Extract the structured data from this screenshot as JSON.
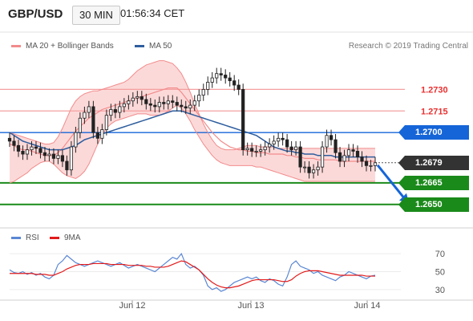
{
  "header": {
    "symbol": "GBP/USD",
    "timeframe": "30 MIN",
    "time": "01:56:34 CET"
  },
  "legend": {
    "bollinger_label": "MA 20 + Bollinger Bands",
    "ma50_label": "MA 50",
    "research": "Research © 2019 Trading Central",
    "rsi_label": "RSI",
    "ma9_label": "9MA"
  },
  "colors": {
    "bollinger": "#f28b8b",
    "band_fill": "#fcd9d9",
    "ma50": "#2f5e9e",
    "pivot_blue": "#1565d8",
    "support_green": "#1a8a1a",
    "resistance": "#f5a0a0",
    "candle_up": "#f5f5f5",
    "candle_down": "#222222",
    "rsi": "#5b87d4",
    "ma9": "#e21b1b",
    "current_tag": "#333333"
  },
  "levels": [
    {
      "value": 1.273,
      "label": "1.2730",
      "kind": "resistance"
    },
    {
      "value": 1.2715,
      "label": "1.2715",
      "kind": "resistance"
    },
    {
      "value": 1.27,
      "label": "1.2700",
      "kind": "pivot"
    },
    {
      "value": 1.2679,
      "label": "1.2679",
      "kind": "current"
    },
    {
      "value": 1.2665,
      "label": "1.2665",
      "kind": "support"
    },
    {
      "value": 1.265,
      "label": "1.2650",
      "kind": "support"
    }
  ],
  "chart_data": [
    {
      "type": "candlestick",
      "x_labels": [
        "Jun 12",
        "Jun 13",
        "Jun 14"
      ],
      "ylim": [
        1.2637,
        1.2752
      ],
      "series": [
        {
          "name": "Price",
          "values": [
            1.2694,
            1.2691,
            1.2687,
            1.2685,
            1.2688,
            1.269,
            1.2689,
            1.2686,
            1.2684,
            1.2685,
            1.2682,
            1.2684,
            1.268,
            1.2674,
            1.269,
            1.27,
            1.271,
            1.2714,
            1.2718,
            1.27,
            1.2696,
            1.2702,
            1.2712,
            1.2716,
            1.2714,
            1.2718,
            1.272,
            1.2722,
            1.2724,
            1.2725,
            1.2723,
            1.272,
            1.2719,
            1.2718,
            1.2721,
            1.272,
            1.2722,
            1.2721,
            1.2719,
            1.2718,
            1.2717,
            1.2719,
            1.2722,
            1.2726,
            1.273,
            1.2735,
            1.2738,
            1.2741,
            1.274,
            1.2738,
            1.2736,
            1.2733,
            1.273,
            1.2688,
            1.2689,
            1.2687,
            1.2687,
            1.2688,
            1.269,
            1.2692,
            1.2694,
            1.2696,
            1.2695,
            1.269,
            1.2688,
            1.269,
            1.2676,
            1.2676,
            1.2672,
            1.2674,
            1.2676,
            1.269,
            1.2698,
            1.2695,
            1.2686,
            1.268,
            1.2684,
            1.2688,
            1.2687,
            1.2683,
            1.268,
            1.2677,
            1.2677,
            1.2679
          ]
        },
        {
          "name": "MA 20",
          "values": [
            1.2692,
            1.2691,
            1.2689,
            1.2688,
            1.2688,
            1.2687,
            1.2686,
            1.2685,
            1.2684,
            1.2684,
            1.2684,
            1.2686,
            1.2689,
            1.2693,
            1.2697,
            1.2701,
            1.2704,
            1.2707,
            1.271,
            1.2712,
            1.2714,
            1.2716,
            1.2717,
            1.2718,
            1.2719,
            1.272,
            1.2721,
            1.2722,
            1.2723,
            1.2724,
            1.2725,
            1.2726,
            1.2727,
            1.2728,
            1.2729,
            1.273,
            1.2731,
            1.2731,
            1.2731,
            1.2728,
            1.2724,
            1.272,
            1.2716,
            1.2712,
            1.2708,
            1.2704,
            1.27,
            1.2697,
            1.2694,
            1.2692,
            1.269,
            1.2689,
            1.2688,
            1.2688,
            1.2687,
            1.2687,
            1.2686,
            1.2686,
            1.2686,
            1.2685,
            1.2685,
            1.2685,
            1.2685,
            1.2684,
            1.2684,
            1.2683,
            1.2683,
            1.2682,
            1.2682,
            1.2682,
            1.2681,
            1.2681,
            1.2681,
            1.2681,
            1.2681,
            1.268,
            1.268,
            1.268,
            1.268,
            1.268,
            1.268,
            1.268,
            1.268,
            1.268
          ]
        },
        {
          "name": "MA 50",
          "values": [
            1.27,
            1.2698,
            1.2696,
            1.2694,
            1.2693,
            1.2692,
            1.2691,
            1.269,
            1.2689,
            1.2688,
            1.2688,
            1.2688,
            1.2688,
            1.2689,
            1.269,
            1.2691,
            1.2693,
            1.2695,
            1.2696,
            1.2697,
            1.2698,
            1.2699,
            1.27,
            1.2701,
            1.2702,
            1.2703,
            1.2704,
            1.2705,
            1.2706,
            1.2707,
            1.2708,
            1.2709,
            1.271,
            1.2711,
            1.2712,
            1.2713,
            1.2714,
            1.2715,
            1.2715,
            1.2715,
            1.2714,
            1.2713,
            1.2712,
            1.2711,
            1.271,
            1.2709,
            1.2708,
            1.2707,
            1.2706,
            1.2705,
            1.2704,
            1.2703,
            1.2702,
            1.2701,
            1.27,
            1.2699,
            1.2698,
            1.2696,
            1.2694,
            1.2692,
            1.269,
            1.2689,
            1.2688,
            1.2687,
            1.2687,
            1.2686,
            1.2686,
            1.2685,
            1.2685,
            1.2685,
            1.2684,
            1.2684,
            1.2684,
            1.2684,
            1.2683,
            1.2683,
            1.2683,
            1.2683,
            1.2683,
            1.2683,
            1.2683,
            1.2683,
            1.2683,
            1.2683
          ]
        },
        {
          "name": "Bollinger Upper",
          "values": [
            1.27,
            1.2699,
            1.2698,
            1.2697,
            1.2696,
            1.2695,
            1.2694,
            1.2693,
            1.2692,
            1.2692,
            1.2693,
            1.2697,
            1.2703,
            1.271,
            1.2717,
            1.2722,
            1.2725,
            1.2727,
            1.2728,
            1.2729,
            1.2729,
            1.273,
            1.2731,
            1.2732,
            1.2733,
            1.2734,
            1.2735,
            1.2737,
            1.274,
            1.2743,
            1.2745,
            1.2747,
            1.2748,
            1.2749,
            1.275,
            1.275,
            1.2749,
            1.2748,
            1.2745,
            1.2741,
            1.2735,
            1.2728,
            1.272,
            1.2713,
            1.2706,
            1.27,
            1.2695,
            1.2691,
            1.2689,
            1.2688,
            1.2688,
            1.2688,
            1.2689,
            1.269,
            1.2691,
            1.2691,
            1.2691,
            1.269,
            1.269,
            1.269,
            1.269,
            1.2689,
            1.2689,
            1.2689,
            1.2689,
            1.2689,
            1.2689,
            1.2689,
            1.2689,
            1.2689,
            1.2689,
            1.2689,
            1.2689,
            1.2689,
            1.2689,
            1.2689,
            1.2689,
            1.2689,
            1.2689,
            1.2689,
            1.2689,
            1.2689,
            1.2689,
            1.2689
          ]
        },
        {
          "name": "Bollinger Lower",
          "values": [
            1.2665,
            1.2666,
            1.2668,
            1.267,
            1.2672,
            1.2675,
            1.2677,
            1.2679,
            1.268,
            1.268,
            1.2678,
            1.2675,
            1.2672,
            1.267,
            1.2669,
            1.2668,
            1.267,
            1.2673,
            1.2678,
            1.2685,
            1.2692,
            1.2698,
            1.2703,
            1.2706,
            1.2708,
            1.2709,
            1.271,
            1.2711,
            1.2712,
            1.2713,
            1.2713,
            1.2713,
            1.2712,
            1.2712,
            1.2712,
            1.2713,
            1.2715,
            1.2717,
            1.2719,
            1.2717,
            1.2713,
            1.2708,
            1.2702,
            1.2697,
            1.2692,
            1.2688,
            1.2684,
            1.2681,
            1.2679,
            1.2678,
            1.2677,
            1.2677,
            1.2677,
            1.2677,
            1.2677,
            1.2677,
            1.2676,
            1.2676,
            1.2675,
            1.2674,
            1.2673,
            1.2672,
            1.2671,
            1.267,
            1.2669,
            1.2668,
            1.2667,
            1.2666,
            1.2666,
            1.2666,
            1.2666,
            1.2666,
            1.2666,
            1.2666,
            1.2666,
            1.2666,
            1.2666,
            1.2666,
            1.2666,
            1.2666,
            1.2666,
            1.2666,
            1.2666,
            1.2666
          ]
        }
      ]
    },
    {
      "type": "line",
      "yticks": [
        70,
        50,
        30
      ],
      "ylim": [
        20,
        80
      ],
      "series": [
        {
          "name": "RSI",
          "values": [
            52,
            49,
            48,
            50,
            47,
            49,
            46,
            48,
            44,
            42,
            46,
            58,
            62,
            68,
            64,
            60,
            58,
            56,
            58,
            60,
            62,
            60,
            58,
            56,
            58,
            60,
            57,
            54,
            56,
            58,
            56,
            54,
            52,
            50,
            54,
            58,
            62,
            66,
            64,
            70,
            58,
            54,
            56,
            52,
            46,
            34,
            30,
            32,
            28,
            30,
            34,
            38,
            40,
            42,
            44,
            42,
            44,
            40,
            38,
            42,
            40,
            36,
            34,
            44,
            58,
            62,
            56,
            54,
            52,
            48,
            50,
            46,
            44,
            42,
            40,
            44,
            46,
            50,
            48,
            46,
            44,
            42,
            45,
            46
          ]
        },
        {
          "name": "9MA",
          "values": [
            48,
            48,
            48,
            48,
            48,
            48,
            47,
            47,
            47,
            46,
            46,
            48,
            50,
            53,
            55,
            57,
            58,
            58,
            58,
            59,
            59,
            59,
            59,
            58,
            58,
            58,
            58,
            57,
            57,
            57,
            57,
            56,
            56,
            55,
            55,
            55,
            56,
            58,
            60,
            62,
            61,
            58,
            55,
            52,
            47,
            42,
            38,
            35,
            33,
            32,
            32,
            33,
            34,
            36,
            38,
            40,
            41,
            41,
            41,
            41,
            41,
            40,
            39,
            39,
            41,
            45,
            48,
            50,
            51,
            51,
            51,
            50,
            49,
            48,
            47,
            46,
            46,
            46,
            46,
            46,
            46,
            45,
            45,
            45
          ]
        }
      ]
    }
  ]
}
